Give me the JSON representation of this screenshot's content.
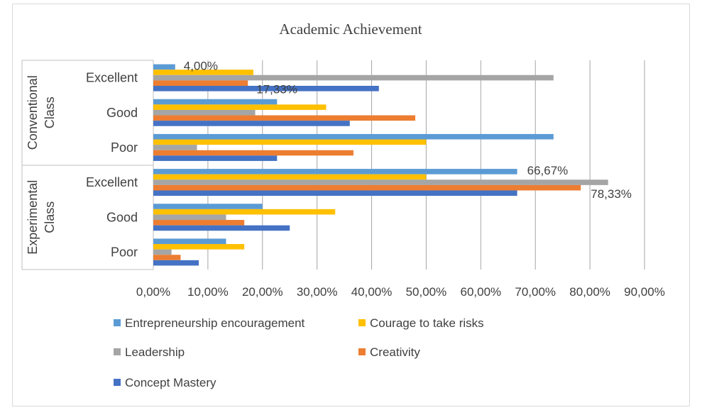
{
  "chart_data": {
    "type": "bar",
    "orientation": "horizontal",
    "title": "Academic Achievement",
    "xlim": [
      0,
      90
    ],
    "x_ticks": [
      "0,00%",
      "10,00%",
      "20,00%",
      "30,00%",
      "40,00%",
      "50,00%",
      "60,00%",
      "70,00%",
      "80,00%",
      "90,00%"
    ],
    "grid": true,
    "legend_position": "bottom",
    "groups": [
      {
        "name": "Conventional Class",
        "categories": [
          "Excellent",
          "Good",
          "Poor"
        ]
      },
      {
        "name": "Experimental Class",
        "categories": [
          "Excellent",
          "Good",
          "Poor"
        ]
      }
    ],
    "series": [
      {
        "name": "Entrepreneurship encouragement",
        "color": "#5b9bd5",
        "values": [
          4.0,
          22.67,
          73.33,
          66.67,
          20.0,
          13.33
        ]
      },
      {
        "name": "Courage to take risks",
        "color": "#ffc000",
        "values": [
          18.33,
          31.67,
          50.0,
          50.0,
          33.33,
          16.67
        ]
      },
      {
        "name": "Leadership",
        "color": "#a5a5a5",
        "values": [
          73.33,
          18.67,
          8.0,
          83.33,
          13.33,
          3.33
        ]
      },
      {
        "name": "Creativity",
        "color": "#ed7d31",
        "values": [
          17.33,
          48.0,
          36.67,
          78.33,
          16.67,
          5.0
        ]
      },
      {
        "name": "Concept Mastery",
        "color": "#4472c4",
        "values": [
          41.33,
          36.0,
          22.67,
          66.67,
          25.0,
          8.33
        ]
      }
    ],
    "data_labels": [
      {
        "series": 0,
        "category": 0,
        "text": "4,00%"
      },
      {
        "series": 3,
        "category": 0,
        "text": "17,33%"
      },
      {
        "series": 0,
        "category": 3,
        "text": "66,67%"
      },
      {
        "series": 3,
        "category": 3,
        "text": "78,33%"
      }
    ]
  }
}
